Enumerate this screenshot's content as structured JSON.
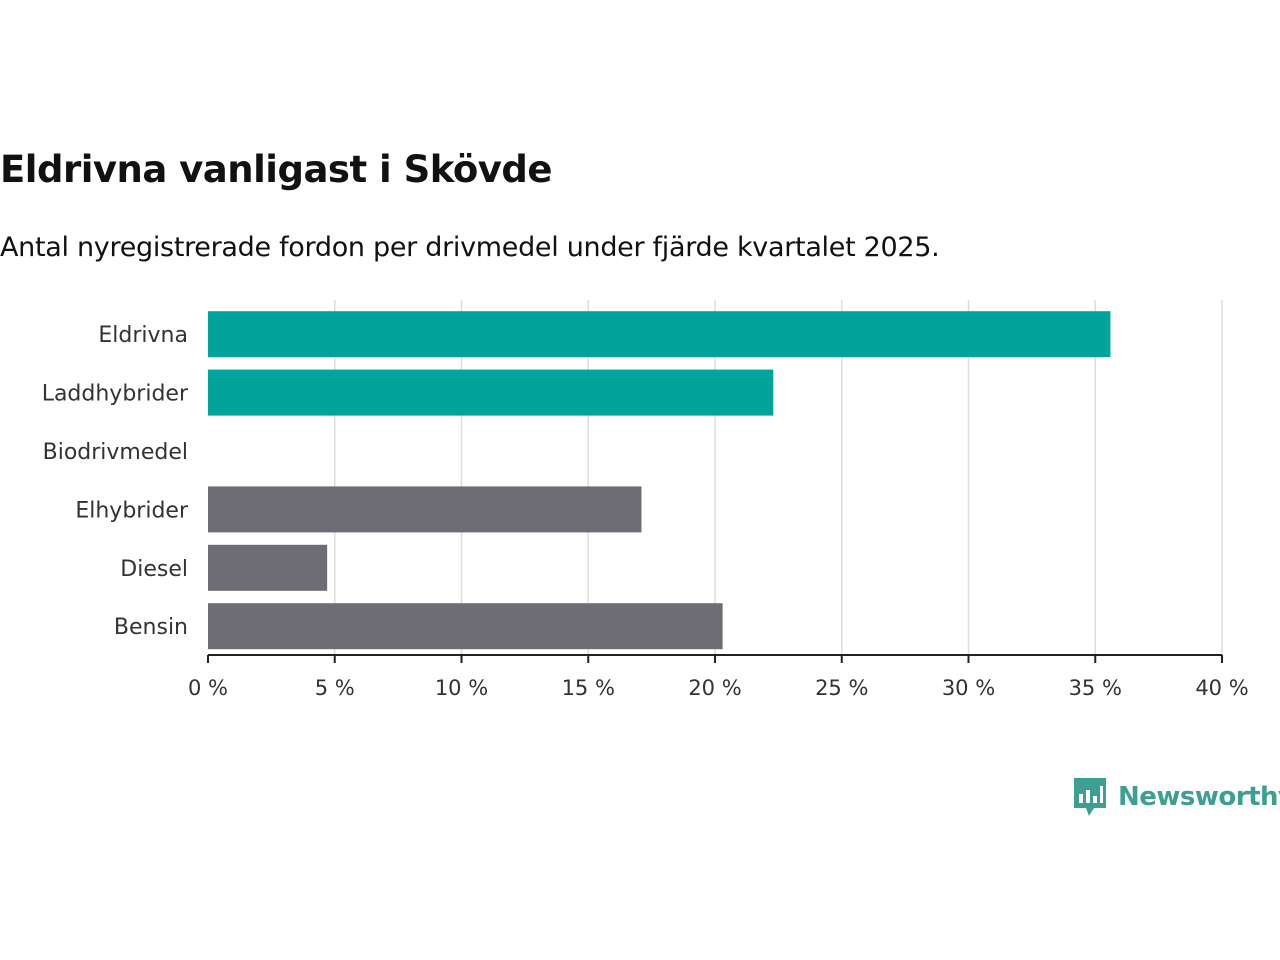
{
  "header": {
    "title": "Eldrivna vanligast i Skövde",
    "subtitle": "Antal nyregistrerade fordon per drivmedel under fjärde kvartalet 2025."
  },
  "brand": {
    "name": "Newsworthy",
    "icon": "bar-chart-speech-bubble-icon",
    "color": "#3d9e93"
  },
  "colors": {
    "highlight": "#00a49a",
    "other": "#6e6d73",
    "grid": "#dddddd",
    "axis": "#222222"
  },
  "chart_data": {
    "type": "bar",
    "orientation": "horizontal",
    "categories": [
      "Eldrivna",
      "Laddhybrider",
      "Biodrivmedel",
      "Elhybrider",
      "Diesel",
      "Bensin"
    ],
    "values": [
      35.6,
      22.3,
      0,
      17.1,
      4.7,
      20.3
    ],
    "highlighted": [
      true,
      true,
      false,
      false,
      false,
      false
    ],
    "xlim": [
      0,
      40
    ],
    "xticks": [
      0,
      5,
      10,
      15,
      20,
      25,
      30,
      35,
      40
    ],
    "tick_suffix": " %",
    "grid": "vertical"
  }
}
